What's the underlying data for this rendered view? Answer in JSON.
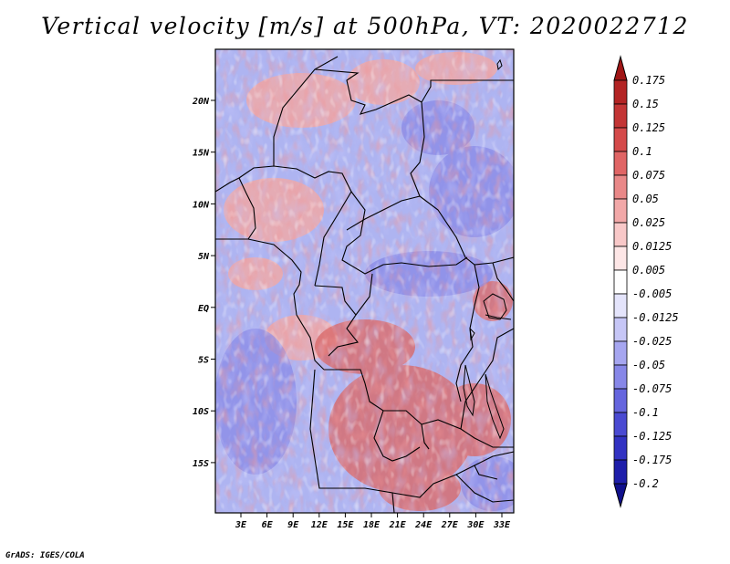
{
  "title": "Vertical velocity [m/s] at 500hPa, VT: 2020022712",
  "credit": "GrADS: IGES/COLA",
  "map": {
    "lat_labels": [
      "20N",
      "15N",
      "10N",
      "5N",
      "EQ",
      "5S",
      "10S",
      "15S"
    ],
    "lon_labels": [
      "3E",
      "6E",
      "9E",
      "12E",
      "15E",
      "18E",
      "21E",
      "24E",
      "27E",
      "30E",
      "33E"
    ],
    "field": "vertical velocity",
    "units": "m/s",
    "level": "500hPa",
    "valid_time": "2020022712"
  },
  "colorbar": {
    "labels": [
      "0.175",
      "0.15",
      "0.125",
      "0.1",
      "0.075",
      "0.05",
      "0.025",
      "0.0125",
      "0.005",
      "-0.005",
      "-0.0125",
      "-0.025",
      "-0.05",
      "-0.075",
      "-0.1",
      "-0.125",
      "-0.175",
      "-0.2"
    ],
    "colors": [
      "#a01616",
      "#b32424",
      "#c33535",
      "#d44a4a",
      "#e06565",
      "#e98888",
      "#f2a8a8",
      "#f8c8c8",
      "#fde6e6",
      "#ffffff",
      "#e4e4fb",
      "#c6c6f6",
      "#a6a6f0",
      "#8787e8",
      "#6565de",
      "#4a4ad2",
      "#3232c2",
      "#1e1eaa",
      "#10108c"
    ]
  }
}
